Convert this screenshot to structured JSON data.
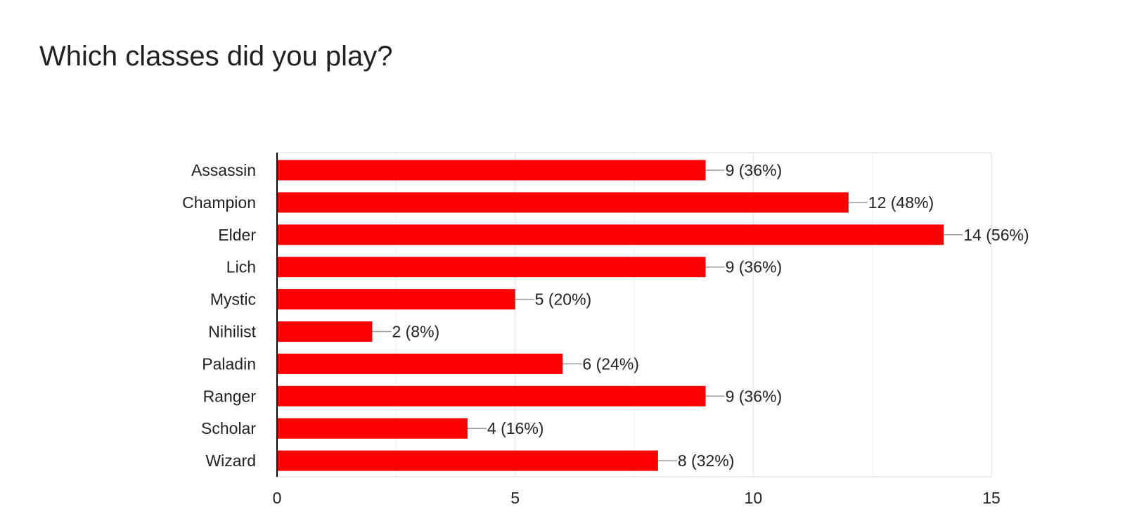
{
  "chart_data": {
    "type": "bar",
    "orientation": "horizontal",
    "title": "Which classes did you play?",
    "categories": [
      "Assassin",
      "Champion",
      "Elder",
      "Lich",
      "Mystic",
      "Nihilist",
      "Paladin",
      "Ranger",
      "Scholar",
      "Wizard"
    ],
    "values": [
      9,
      12,
      14,
      9,
      5,
      2,
      6,
      9,
      4,
      8
    ],
    "data_labels": [
      "9 (36%)",
      "12 (48%)",
      "14 (56%)",
      "9 (36%)",
      "5 (20%)",
      "2 (8%)",
      "6 (24%)",
      "9 (36%)",
      "4 (16%)",
      "8 (32%)"
    ],
    "xlim": [
      0,
      15
    ],
    "xticks": [
      0,
      5,
      10,
      15
    ],
    "xtick_labels": [
      "0",
      "5",
      "10",
      "15"
    ],
    "minor_gridlines": [
      2.5,
      7.5,
      12.5
    ],
    "grid": true,
    "bar_color": "#ff0000",
    "grid_color": "#ececec",
    "axis_color": "#000000",
    "leader_color": "#999999"
  }
}
